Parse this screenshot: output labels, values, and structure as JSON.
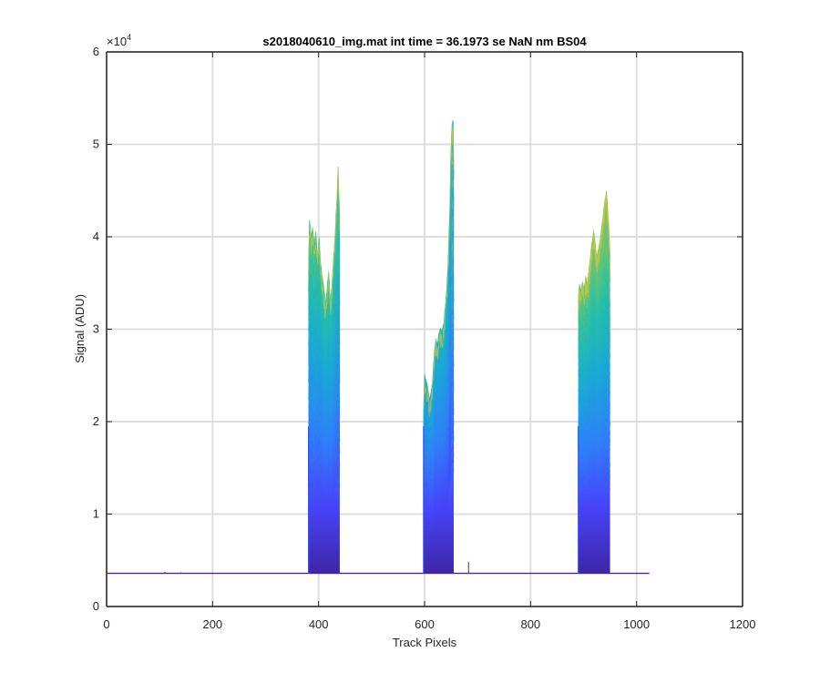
{
  "chart_data": {
    "type": "line",
    "title": "s2018040610_img.mat int time = 36.1973 se  NaN nm BS04",
    "xlabel": "Track Pixels",
    "ylabel": "Signal (ADU)",
    "xlim": [
      0,
      1200
    ],
    "ylim": [
      0,
      60000
    ],
    "x_ticks": [
      0,
      200,
      400,
      600,
      800,
      1000,
      1200
    ],
    "x_tick_labels": [
      "0",
      "200",
      "400",
      "600",
      "800",
      "1000",
      "1200"
    ],
    "y_ticks": [
      0,
      10000,
      20000,
      30000,
      40000,
      50000,
      60000
    ],
    "y_tick_labels": [
      "0",
      "1",
      "2",
      "3",
      "4",
      "5",
      "6"
    ],
    "y_exponent_base": "×10",
    "y_exponent_power": "4",
    "grid": true,
    "baseline_range": [
      0,
      1024
    ],
    "baseline_value": 3600,
    "colormap": [
      "#3e26a8",
      "#4743f9",
      "#2f80f9",
      "#1ba7d8",
      "#24bfaa",
      "#7fc662",
      "#d1bb3b",
      "#f9e21a"
    ],
    "series_count": 60,
    "peaks": [
      {
        "name": "peak-1",
        "x_start": 381,
        "x_end": 440,
        "min_top": 19500,
        "envelope": [
          [
            381,
            37500
          ],
          [
            383,
            41800
          ],
          [
            386,
            40200
          ],
          [
            389,
            41200
          ],
          [
            392,
            39500
          ],
          [
            395,
            40600
          ],
          [
            398,
            38000
          ],
          [
            401,
            40300
          ],
          [
            404,
            37200
          ],
          [
            407,
            35800
          ],
          [
            410,
            34600
          ],
          [
            413,
            32800
          ],
          [
            416,
            34500
          ],
          [
            419,
            36500
          ],
          [
            422,
            33200
          ],
          [
            425,
            34800
          ],
          [
            428,
            37800
          ],
          [
            431,
            40200
          ],
          [
            434,
            44000
          ],
          [
            437,
            47600
          ],
          [
            440,
            42000
          ]
        ]
      },
      {
        "name": "peak-2",
        "x_start": 598,
        "x_end": 655,
        "min_top": 19500,
        "envelope": [
          [
            598,
            21500
          ],
          [
            600,
            25200
          ],
          [
            603,
            24500
          ],
          [
            606,
            23800
          ],
          [
            609,
            22500
          ],
          [
            612,
            23200
          ],
          [
            615,
            24300
          ],
          [
            618,
            27500
          ],
          [
            621,
            29000
          ],
          [
            624,
            28500
          ],
          [
            627,
            29600
          ],
          [
            630,
            30200
          ],
          [
            633,
            29800
          ],
          [
            636,
            30800
          ],
          [
            639,
            32500
          ],
          [
            642,
            34800
          ],
          [
            645,
            38500
          ],
          [
            648,
            44500
          ],
          [
            650,
            50500
          ],
          [
            652,
            52300
          ],
          [
            654,
            52800
          ],
          [
            655,
            48000
          ]
        ]
      },
      {
        "name": "peak-3",
        "x_start": 890,
        "x_end": 950,
        "min_top": 19500,
        "envelope": [
          [
            890,
            33500
          ],
          [
            892,
            35000
          ],
          [
            895,
            34300
          ],
          [
            898,
            35200
          ],
          [
            901,
            34500
          ],
          [
            904,
            35800
          ],
          [
            907,
            35000
          ],
          [
            910,
            36500
          ],
          [
            913,
            38200
          ],
          [
            916,
            39500
          ],
          [
            919,
            40800
          ],
          [
            922,
            39500
          ],
          [
            925,
            37800
          ],
          [
            928,
            38800
          ],
          [
            931,
            39700
          ],
          [
            934,
            41200
          ],
          [
            937,
            42500
          ],
          [
            940,
            44000
          ],
          [
            943,
            45000
          ],
          [
            946,
            43000
          ],
          [
            950,
            39000
          ]
        ]
      }
    ],
    "spikes": [
      [
        110,
        3750
      ],
      [
        140,
        3700
      ],
      [
        683,
        4800
      ]
    ]
  }
}
